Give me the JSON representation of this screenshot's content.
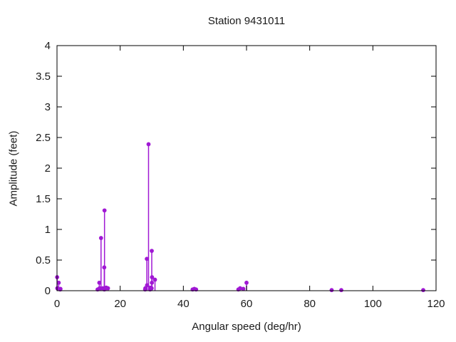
{
  "chart_data": {
    "type": "scatter",
    "subtype": "stem",
    "title": "Station 9431011",
    "xlabel": "Angular speed (deg/hr)",
    "ylabel": "Amplitude (feet)",
    "xlim": [
      0,
      120
    ],
    "ylim": [
      0,
      4
    ],
    "xticks": [
      0,
      20,
      40,
      60,
      80,
      100,
      120
    ],
    "xtick_labels": [
      "0",
      "20",
      "40",
      "60",
      "80",
      "100",
      "120"
    ],
    "yticks": [
      0,
      0.5,
      1,
      1.5,
      2,
      2.5,
      3,
      3.5,
      4
    ],
    "ytick_labels": [
      "0",
      "0.5",
      "1",
      "1.5",
      "2",
      "2.5",
      "3",
      "3.5",
      "4"
    ],
    "grid": false,
    "legend": false,
    "marker_color": "#A018D4",
    "axis_color": "#000000",
    "text_color": "#1a1a1a",
    "background_color": "#ffffff",
    "points": [
      {
        "x": 0.04,
        "y": 0.22
      },
      {
        "x": 0.08,
        "y": 0.04
      },
      {
        "x": 0.54,
        "y": 0.13
      },
      {
        "x": 1.02,
        "y": 0.02
      },
      {
        "x": 1.1,
        "y": 0.03
      },
      {
        "x": 12.85,
        "y": 0.02
      },
      {
        "x": 13.4,
        "y": 0.13
      },
      {
        "x": 13.47,
        "y": 0.04
      },
      {
        "x": 13.94,
        "y": 0.86
      },
      {
        "x": 14.5,
        "y": 0.04
      },
      {
        "x": 14.96,
        "y": 0.38
      },
      {
        "x": 15.0,
        "y": 0.02
      },
      {
        "x": 15.04,
        "y": 1.31
      },
      {
        "x": 15.59,
        "y": 0.05
      },
      {
        "x": 16.14,
        "y": 0.04
      },
      {
        "x": 27.9,
        "y": 0.02
      },
      {
        "x": 27.97,
        "y": 0.04
      },
      {
        "x": 28.44,
        "y": 0.52
      },
      {
        "x": 28.51,
        "y": 0.09
      },
      {
        "x": 28.98,
        "y": 2.39
      },
      {
        "x": 29.46,
        "y": 0.02
      },
      {
        "x": 29.53,
        "y": 0.05
      },
      {
        "x": 29.96,
        "y": 0.04
      },
      {
        "x": 30.0,
        "y": 0.65
      },
      {
        "x": 30.04,
        "y": 0.13
      },
      {
        "x": 30.08,
        "y": 0.22
      },
      {
        "x": 31.02,
        "y": 0.18
      },
      {
        "x": 42.93,
        "y": 0.02
      },
      {
        "x": 43.48,
        "y": 0.03
      },
      {
        "x": 44.03,
        "y": 0.02
      },
      {
        "x": 57.42,
        "y": 0.02
      },
      {
        "x": 57.97,
        "y": 0.04
      },
      {
        "x": 58.98,
        "y": 0.03
      },
      {
        "x": 60.0,
        "y": 0.13
      },
      {
        "x": 86.95,
        "y": 0.01
      },
      {
        "x": 90.0,
        "y": 0.01
      },
      {
        "x": 115.94,
        "y": 0.01
      }
    ]
  }
}
